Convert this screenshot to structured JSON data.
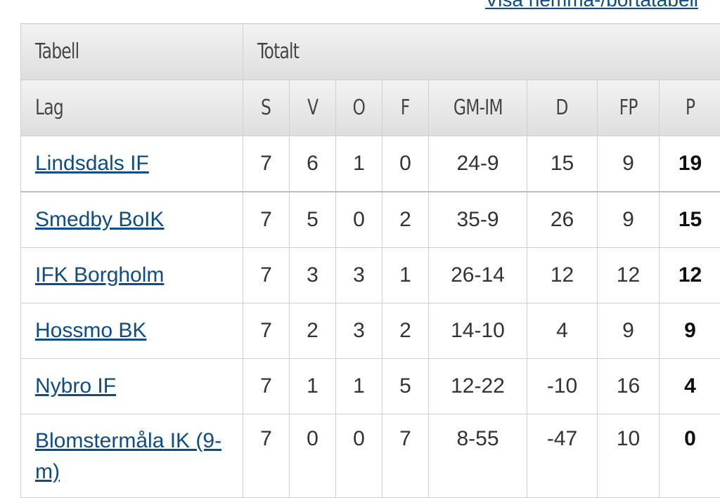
{
  "top_link": "Visa hemma-/bortatabell",
  "group_headers": {
    "table": "Tabell",
    "total": "Totalt"
  },
  "columns": {
    "team": "Lag",
    "s": "S",
    "v": "V",
    "o": "O",
    "f": "F",
    "gmim": "GM-IM",
    "d": "D",
    "fp": "FP",
    "p": "P"
  },
  "rows": [
    {
      "team": "Lindsdals IF",
      "s": "7",
      "v": "6",
      "o": "1",
      "f": "0",
      "gmim": "24-9",
      "d": "15",
      "fp": "9",
      "p": "19"
    },
    {
      "team": "Smedby BoIK",
      "s": "7",
      "v": "5",
      "o": "0",
      "f": "2",
      "gmim": "35-9",
      "d": "26",
      "fp": "9",
      "p": "15"
    },
    {
      "team": "IFK Borgholm",
      "s": "7",
      "v": "3",
      "o": "3",
      "f": "1",
      "gmim": "26-14",
      "d": "12",
      "fp": "12",
      "p": "12"
    },
    {
      "team": "Hossmo BK",
      "s": "7",
      "v": "2",
      "o": "3",
      "f": "2",
      "gmim": "14-10",
      "d": "4",
      "fp": "9",
      "p": "9"
    },
    {
      "team": "Nybro IF",
      "s": "7",
      "v": "1",
      "o": "1",
      "f": "5",
      "gmim": "12-22",
      "d": "-10",
      "fp": "16",
      "p": "4"
    },
    {
      "team": "Blomstermåla IK (9-m)",
      "s": "7",
      "v": "0",
      "o": "0",
      "f": "7",
      "gmim": "8-55",
      "d": "-47",
      "fp": "10",
      "p": "0"
    }
  ],
  "colors": {
    "link": "#0f4c81",
    "header_bg": "#e6e6e6",
    "border": "#cfcfcf"
  }
}
